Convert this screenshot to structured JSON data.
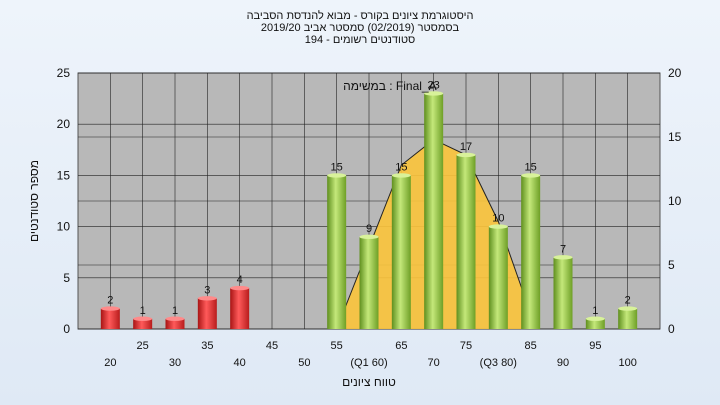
{
  "chart_data": {
    "type": "bar",
    "title": "היסטוגרמת ציונים בקורס - מבוא להנדסת הסביבה",
    "subtitle_lines": [
      "בסמסטר  (02/2019)  סמסטר אביב 2019/20",
      "סטודנטים רשומים - 194"
    ],
    "annotation": "במשימה : Final_A",
    "xlabel": "טווח ציונים",
    "ylabel": "מספר סטודנטים",
    "ylim": [
      0,
      25
    ],
    "y_ticks": [
      0,
      5,
      10,
      15,
      20,
      25
    ],
    "y2lim": [
      0,
      20
    ],
    "y2_ticks": [
      0,
      5,
      10,
      15,
      20
    ],
    "x_tick_labels_upper": [
      "25",
      "35",
      "45",
      "55",
      "65",
      "75",
      "85",
      "95"
    ],
    "x_tick_labels_lower": [
      "20",
      "30",
      "40",
      "50",
      "(Q1 60)",
      "70",
      "(Q3 80)",
      "90",
      "100"
    ],
    "categories": [
      "20",
      "25",
      "30",
      "35",
      "40",
      "45",
      "50",
      "55",
      "60",
      "65",
      "70",
      "75",
      "80",
      "85",
      "90",
      "95",
      "100"
    ],
    "values": [
      2,
      1,
      1,
      3,
      4,
      0,
      0,
      15,
      9,
      15,
      23,
      17,
      10,
      15,
      7,
      1,
      2
    ],
    "data_labels": [
      "2",
      "1",
      "1",
      "3",
      "4",
      "",
      "",
      "15",
      "9",
      "15",
      "23",
      "17",
      "10",
      "15",
      "7",
      "1",
      "2"
    ],
    "fail_threshold": 55,
    "distribution_curve": {
      "x": [
        55,
        60,
        65,
        70,
        75,
        80,
        85
      ],
      "y": [
        0,
        8,
        16,
        18.5,
        17,
        10.5,
        1.5
      ]
    },
    "grid": true,
    "colors": {
      "fail_bar": "#e03030",
      "pass_bar": "#8cc63f",
      "curve_fill": "#f9c33d",
      "plot_bg": "#b8b8b8"
    }
  }
}
